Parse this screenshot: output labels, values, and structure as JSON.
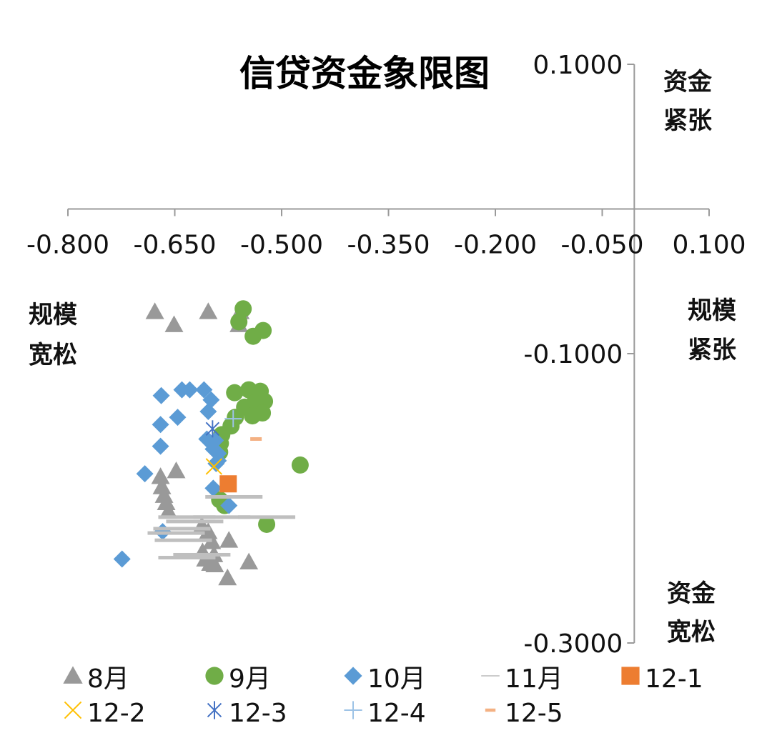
{
  "chart_data": {
    "type": "scatter",
    "title": "信贷资金象限图",
    "xlim": [
      -0.8,
      0.1
    ],
    "ylim": [
      -0.3,
      0.1
    ],
    "x_ticks": [
      -0.8,
      -0.65,
      -0.5,
      -0.35,
      -0.2,
      -0.05,
      0.1
    ],
    "x_tick_labels": [
      "-0.800",
      "-0.650",
      "-0.500",
      "-0.350",
      "-0.200",
      "-0.050",
      "0.100"
    ],
    "y_ticks": [
      0.1,
      -0.1,
      -0.3
    ],
    "y_tick_labels": [
      "0.1000",
      "-0.1000",
      "-0.3000"
    ],
    "y_axis_crosses_x_at": -0.005,
    "x_axis_crosses_y_at": 0.0,
    "grid": false,
    "legend_position": "bottom",
    "quadrant_labels": {
      "top_right": [
        "资金",
        "紧张"
      ],
      "left": [
        "规模",
        "宽松"
      ],
      "right": [
        "规模",
        "紧张"
      ],
      "bottom_right": [
        "资金",
        "宽松"
      ]
    },
    "series": [
      {
        "name": "8月",
        "marker": "triangle",
        "color": "#999999",
        "points": [
          [
            -0.678,
            -0.071
          ],
          [
            -0.651,
            -0.08
          ],
          [
            -0.603,
            -0.071
          ],
          [
            -0.558,
            -0.071
          ],
          [
            -0.56,
            -0.08
          ],
          [
            -0.67,
            -0.185
          ],
          [
            -0.648,
            -0.181
          ],
          [
            -0.668,
            -0.192
          ],
          [
            -0.665,
            -0.198
          ],
          [
            -0.662,
            -0.203
          ],
          [
            -0.659,
            -0.209
          ],
          [
            -0.612,
            -0.219
          ],
          [
            -0.603,
            -0.223
          ],
          [
            -0.598,
            -0.23
          ],
          [
            -0.611,
            -0.237
          ],
          [
            -0.595,
            -0.239
          ],
          [
            -0.607,
            -0.242
          ],
          [
            -0.6,
            -0.245
          ],
          [
            -0.594,
            -0.246
          ],
          [
            -0.574,
            -0.229
          ],
          [
            -0.546,
            -0.244
          ],
          [
            -0.576,
            -0.255
          ]
        ]
      },
      {
        "name": "9月",
        "marker": "circle",
        "color": "#70AD47",
        "points": [
          [
            -0.554,
            -0.069
          ],
          [
            -0.56,
            -0.078
          ],
          [
            -0.54,
            -0.088
          ],
          [
            -0.526,
            -0.084
          ],
          [
            -0.566,
            -0.127
          ],
          [
            -0.546,
            -0.125
          ],
          [
            -0.53,
            -0.126
          ],
          [
            -0.524,
            -0.133
          ],
          [
            -0.538,
            -0.134
          ],
          [
            -0.552,
            -0.137
          ],
          [
            -0.527,
            -0.141
          ],
          [
            -0.541,
            -0.143
          ],
          [
            -0.565,
            -0.144
          ],
          [
            -0.571,
            -0.15
          ],
          [
            -0.584,
            -0.156
          ],
          [
            -0.586,
            -0.162
          ],
          [
            -0.587,
            -0.168
          ],
          [
            -0.474,
            -0.177
          ],
          [
            -0.587,
            -0.201
          ],
          [
            -0.58,
            -0.205
          ],
          [
            -0.521,
            -0.218
          ]
        ]
      },
      {
        "name": "10月",
        "marker": "diamond",
        "color": "#5B9BD5",
        "points": [
          [
            -0.669,
            -0.129
          ],
          [
            -0.64,
            -0.125
          ],
          [
            -0.629,
            -0.125
          ],
          [
            -0.609,
            -0.125
          ],
          [
            -0.599,
            -0.132
          ],
          [
            -0.603,
            -0.14
          ],
          [
            -0.646,
            -0.144
          ],
          [
            -0.67,
            -0.149
          ],
          [
            -0.605,
            -0.159
          ],
          [
            -0.593,
            -0.16
          ],
          [
            -0.67,
            -0.164
          ],
          [
            -0.596,
            -0.166
          ],
          [
            -0.589,
            -0.169
          ],
          [
            -0.589,
            -0.174
          ],
          [
            -0.592,
            -0.176
          ],
          [
            -0.692,
            -0.183
          ],
          [
            -0.596,
            -0.193
          ],
          [
            -0.574,
            -0.205
          ],
          [
            -0.667,
            -0.223
          ],
          [
            -0.724,
            -0.242
          ]
        ]
      },
      {
        "name": "11月",
        "marker": "dash",
        "color": "#BFBFBF",
        "points": [
          [
            -0.567,
            -0.199
          ],
          [
            -0.633,
            -0.213
          ],
          [
            -0.584,
            -0.213
          ],
          [
            -0.521,
            -0.213
          ],
          [
            -0.622,
            -0.216
          ],
          [
            -0.64,
            -0.221
          ],
          [
            -0.648,
            -0.224
          ],
          [
            -0.638,
            -0.229
          ],
          [
            -0.612,
            -0.239
          ],
          [
            -0.633,
            -0.241
          ]
        ]
      },
      {
        "name": "12-1",
        "marker": "square",
        "color": "#ED7D31",
        "points": [
          [
            -0.575,
            -0.19
          ]
        ]
      },
      {
        "name": "12-2",
        "marker": "x",
        "color": "#FFC000",
        "points": [
          [
            -0.595,
            -0.178
          ]
        ]
      },
      {
        "name": "12-3",
        "marker": "star",
        "color": "#4472C4",
        "points": [
          [
            -0.597,
            -0.152
          ]
        ]
      },
      {
        "name": "12-4",
        "marker": "plus",
        "color": "#9DC3E6",
        "points": [
          [
            -0.568,
            -0.145
          ]
        ]
      },
      {
        "name": "12-5",
        "marker": "smalldash",
        "color": "#F4B183",
        "points": [
          [
            -0.536,
            -0.159
          ]
        ]
      }
    ]
  }
}
